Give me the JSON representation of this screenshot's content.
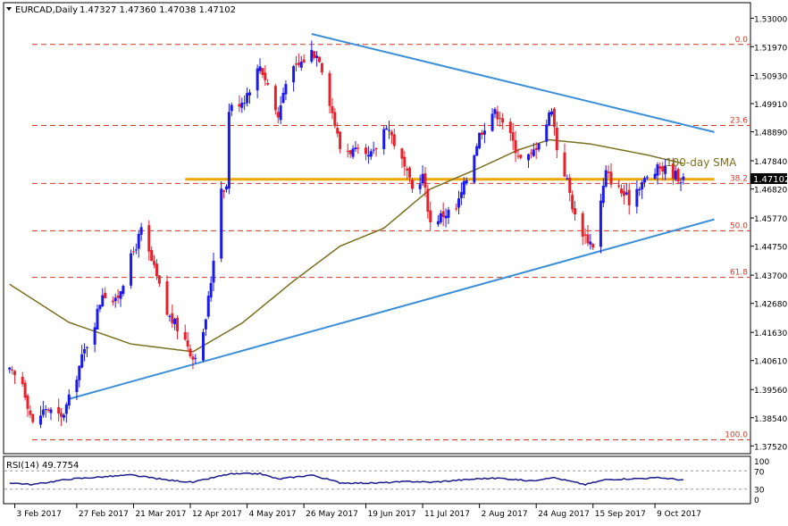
{
  "header": {
    "symbol": "EURCAD,Daily",
    "ohlc": "1.47327 1.47360 1.47038 1.47102"
  },
  "price_axis": {
    "ticks": [
      "1.53000",
      "1.51970",
      "1.50930",
      "1.49910",
      "1.48890",
      "1.47840",
      "1.46820",
      "1.45770",
      "1.44750",
      "1.43700",
      "1.42680",
      "1.41630",
      "1.40610",
      "1.39560",
      "1.38540",
      "1.37520"
    ],
    "current_price_label": "1.47102"
  },
  "time_axis": {
    "labels": [
      "3 Feb 2017",
      "27 Feb 2017",
      "21 Mar 2017",
      "12 Apr 2017",
      "4 May 2017",
      "26 May 2017",
      "19 Jun 2017",
      "11 Jul 2017",
      "2 Aug 2017",
      "24 Aug 2017",
      "15 Sep 2017",
      "9 Oct 2017"
    ]
  },
  "fib_levels": [
    {
      "label": "0.0",
      "price": 1.5205
    },
    {
      "label": "23.6",
      "price": 1.4912
    },
    {
      "label": "38.2",
      "price": 1.4702
    },
    {
      "label": "50.0",
      "price": 1.4531
    },
    {
      "label": "61.8",
      "price": 1.4362
    },
    {
      "label": "100.0",
      "price": 1.3774
    }
  ],
  "annotations": {
    "sma_label": "100-day SMA"
  },
  "rsi_panel": {
    "title": "RSI(14) 49.7754",
    "ticks": [
      "100",
      "70",
      "30",
      "0"
    ]
  },
  "colors": {
    "candle_up": "#1a1aee",
    "candle_down": "#e8202a",
    "trendline": "#3a8fd8",
    "support_zone": "#f0a800",
    "sma": "#7a7020",
    "fib": "#d23a2a",
    "rsi": "#1a1a8a"
  },
  "chart_data": {
    "type": "candlestick",
    "symbol": "EURCAD",
    "timeframe": "Daily",
    "last": 1.47102,
    "ylim": [
      1.3724,
      1.5353
    ],
    "trendlines": [
      {
        "name": "falling-resistance",
        "from": {
          "date": "2017-05-29",
          "price": 1.5243
        },
        "to": {
          "date": "2017-11-01",
          "price": 1.4888
        }
      },
      {
        "name": "rising-support",
        "from": {
          "date": "2017-02-24",
          "price": 1.3922
        },
        "to": {
          "date": "2017-11-01",
          "price": 1.4572
        }
      },
      {
        "name": "horizontal-support",
        "from": {
          "date": "2017-04-10",
          "price": 1.4717
        },
        "to": {
          "date": "2017-11-01",
          "price": 1.4717
        }
      }
    ],
    "sma100_anchors": [
      {
        "date": "2017-02-01",
        "price": 1.4337
      },
      {
        "date": "2017-02-24",
        "price": 1.4199
      },
      {
        "date": "2017-03-20",
        "price": 1.4121
      },
      {
        "date": "2017-04-13",
        "price": 1.4093
      },
      {
        "date": "2017-05-02",
        "price": 1.4196
      },
      {
        "date": "2017-05-22",
        "price": 1.4349
      },
      {
        "date": "2017-06-09",
        "price": 1.4475
      },
      {
        "date": "2017-06-26",
        "price": 1.454
      },
      {
        "date": "2017-07-14",
        "price": 1.4682
      },
      {
        "date": "2017-08-01",
        "price": 1.4754
      },
      {
        "date": "2017-08-17",
        "price": 1.4823
      },
      {
        "date": "2017-08-29",
        "price": 1.486
      },
      {
        "date": "2017-09-14",
        "price": 1.4845
      },
      {
        "date": "2017-10-06",
        "price": 1.4805
      },
      {
        "date": "2017-10-20",
        "price": 1.4774
      }
    ],
    "close_anchors": [
      {
        "date": "2017-02-01",
        "price": 1.402
      },
      {
        "date": "2017-02-06",
        "price": 1.398
      },
      {
        "date": "2017-02-10",
        "price": 1.383
      },
      {
        "date": "2017-02-15",
        "price": 1.389
      },
      {
        "date": "2017-02-21",
        "price": 1.385
      },
      {
        "date": "2017-02-24",
        "price": 1.392
      },
      {
        "date": "2017-03-01",
        "price": 1.407
      },
      {
        "date": "2017-03-06",
        "price": 1.42
      },
      {
        "date": "2017-03-09",
        "price": 1.431
      },
      {
        "date": "2017-03-14",
        "price": 1.427
      },
      {
        "date": "2017-03-20",
        "price": 1.443
      },
      {
        "date": "2017-03-24",
        "price": 1.453
      },
      {
        "date": "2017-03-29",
        "price": 1.439
      },
      {
        "date": "2017-04-03",
        "price": 1.423
      },
      {
        "date": "2017-04-07",
        "price": 1.418
      },
      {
        "date": "2017-04-11",
        "price": 1.412
      },
      {
        "date": "2017-04-13",
        "price": 1.407
      },
      {
        "date": "2017-04-17",
        "price": 1.415
      },
      {
        "date": "2017-04-20",
        "price": 1.435
      },
      {
        "date": "2017-04-24",
        "price": 1.469
      },
      {
        "date": "2017-04-26",
        "price": 1.469
      },
      {
        "date": "2017-04-27",
        "price": 1.497
      },
      {
        "date": "2017-05-03",
        "price": 1.501
      },
      {
        "date": "2017-05-09",
        "price": 1.513
      },
      {
        "date": "2017-05-12",
        "price": 1.506
      },
      {
        "date": "2017-05-16",
        "price": 1.494
      },
      {
        "date": "2017-05-19",
        "price": 1.508
      },
      {
        "date": "2017-05-24",
        "price": 1.513
      },
      {
        "date": "2017-05-29",
        "price": 1.518
      },
      {
        "date": "2017-06-01",
        "price": 1.516
      },
      {
        "date": "2017-06-06",
        "price": 1.496
      },
      {
        "date": "2017-06-09",
        "price": 1.483
      },
      {
        "date": "2017-06-14",
        "price": 1.482
      },
      {
        "date": "2017-06-19",
        "price": 1.479
      },
      {
        "date": "2017-06-22",
        "price": 1.481
      },
      {
        "date": "2017-06-27",
        "price": 1.492
      },
      {
        "date": "2017-07-03",
        "price": 1.478
      },
      {
        "date": "2017-07-07",
        "price": 1.468
      },
      {
        "date": "2017-07-11",
        "price": 1.473
      },
      {
        "date": "2017-07-14",
        "price": 1.456
      },
      {
        "date": "2017-07-19",
        "price": 1.459
      },
      {
        "date": "2017-07-24",
        "price": 1.461
      },
      {
        "date": "2017-07-28",
        "price": 1.472
      },
      {
        "date": "2017-08-02",
        "price": 1.488
      },
      {
        "date": "2017-08-07",
        "price": 1.496
      },
      {
        "date": "2017-08-10",
        "price": 1.495
      },
      {
        "date": "2017-08-15",
        "price": 1.485
      },
      {
        "date": "2017-08-18",
        "price": 1.479
      },
      {
        "date": "2017-08-22",
        "price": 1.48
      },
      {
        "date": "2017-08-28",
        "price": 1.492
      },
      {
        "date": "2017-08-30",
        "price": 1.498
      },
      {
        "date": "2017-09-01",
        "price": 1.483
      },
      {
        "date": "2017-09-05",
        "price": 1.471
      },
      {
        "date": "2017-09-08",
        "price": 1.458
      },
      {
        "date": "2017-09-12",
        "price": 1.451
      },
      {
        "date": "2017-09-15",
        "price": 1.448
      },
      {
        "date": "2017-09-20",
        "price": 1.474
      },
      {
        "date": "2017-09-25",
        "price": 1.468
      },
      {
        "date": "2017-09-29",
        "price": 1.464
      },
      {
        "date": "2017-10-03",
        "price": 1.47
      },
      {
        "date": "2017-10-06",
        "price": 1.472
      },
      {
        "date": "2017-10-11",
        "price": 1.476
      },
      {
        "date": "2017-10-16",
        "price": 1.474
      },
      {
        "date": "2017-10-19",
        "price": 1.472
      },
      {
        "date": "2017-10-20",
        "price": 1.471
      }
    ],
    "rsi14": {
      "last": 49.7754,
      "ylim": [
        0,
        100
      ],
      "levels": [
        70,
        30
      ],
      "anchors": [
        {
          "date": "2017-02-01",
          "value": 44
        },
        {
          "date": "2017-02-10",
          "value": 40
        },
        {
          "date": "2017-02-24",
          "value": 52
        },
        {
          "date": "2017-03-20",
          "value": 61
        },
        {
          "date": "2017-04-03",
          "value": 50
        },
        {
          "date": "2017-04-13",
          "value": 45
        },
        {
          "date": "2017-04-27",
          "value": 63
        },
        {
          "date": "2017-05-09",
          "value": 64
        },
        {
          "date": "2017-05-16",
          "value": 52
        },
        {
          "date": "2017-05-29",
          "value": 61
        },
        {
          "date": "2017-06-09",
          "value": 44
        },
        {
          "date": "2017-06-22",
          "value": 43
        },
        {
          "date": "2017-07-07",
          "value": 47
        },
        {
          "date": "2017-07-14",
          "value": 45
        },
        {
          "date": "2017-08-02",
          "value": 53
        },
        {
          "date": "2017-08-10",
          "value": 54
        },
        {
          "date": "2017-08-22",
          "value": 48
        },
        {
          "date": "2017-08-30",
          "value": 56
        },
        {
          "date": "2017-09-12",
          "value": 40
        },
        {
          "date": "2017-09-20",
          "value": 51
        },
        {
          "date": "2017-10-11",
          "value": 55
        },
        {
          "date": "2017-10-20",
          "value": 50
        }
      ]
    },
    "time_labels": [
      {
        "date": "2017-02-03",
        "text": "3 Feb 2017"
      },
      {
        "date": "2017-02-27",
        "text": "27 Feb 2017"
      },
      {
        "date": "2017-03-21",
        "text": "21 Mar 2017"
      },
      {
        "date": "2017-04-12",
        "text": "12 Apr 2017"
      },
      {
        "date": "2017-05-04",
        "text": "4 May 2017"
      },
      {
        "date": "2017-05-26",
        "text": "26 May 2017"
      },
      {
        "date": "2017-06-19",
        "text": "19 Jun 2017"
      },
      {
        "date": "2017-07-11",
        "text": "11 Jul 2017"
      },
      {
        "date": "2017-08-02",
        "text": "2 Aug 2017"
      },
      {
        "date": "2017-08-24",
        "text": "24 Aug 2017"
      },
      {
        "date": "2017-09-15",
        "text": "15 Sep 2017"
      },
      {
        "date": "2017-10-09",
        "text": "9 Oct 2017"
      }
    ]
  }
}
